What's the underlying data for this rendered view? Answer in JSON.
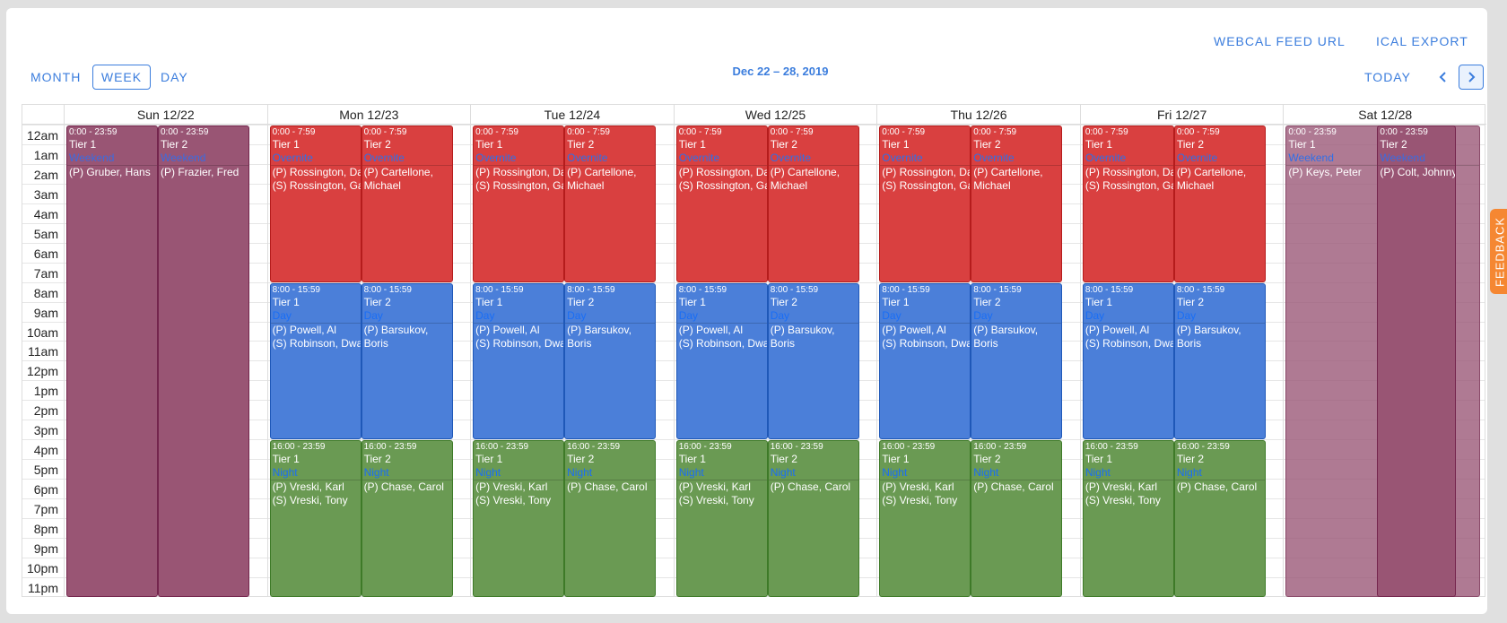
{
  "toolbar": {
    "webcal_label": "WEBCAL FEED URL",
    "ical_label": "ICAL EXPORT",
    "views": [
      "MONTH",
      "WEEK",
      "DAY"
    ],
    "active_view": "WEEK",
    "range_title": "Dec 22 – 28, 2019",
    "today_label": "TODAY",
    "prev_icon": "chevron-left-icon",
    "next_icon": "chevron-right-icon"
  },
  "days": [
    "Sun 12/22",
    "Mon 12/23",
    "Tue 12/24",
    "Wed 12/25",
    "Thu 12/26",
    "Fri 12/27",
    "Sat 12/28"
  ],
  "hours": [
    "12am",
    "1am",
    "2am",
    "3am",
    "4am",
    "5am",
    "6am",
    "7am",
    "8am",
    "9am",
    "10am",
    "11am",
    "12pm",
    "1pm",
    "2pm",
    "3pm",
    "4pm",
    "5pm",
    "6pm",
    "7pm",
    "8pm",
    "9pm",
    "10pm",
    "11pm"
  ],
  "colors": {
    "overnite": "#d94040",
    "day": "#4b7fd9",
    "night": "#6a9a53",
    "weekend": "#995574",
    "accent": "#3b7ddd",
    "feedback": "#f58732"
  },
  "shifts": {
    "weekend": [
      {
        "time": "0:00 - 23:59",
        "tier": "Tier 1",
        "name": "Weekend"
      },
      {
        "time": "0:00 - 23:59",
        "tier": "Tier 2",
        "name": "Weekend"
      }
    ],
    "overnite": [
      {
        "time": "0:00 - 7:59",
        "tier": "Tier 1",
        "name": "Overnite",
        "people": "(P) Rossington, Da\n(S) Rossington, Ga"
      },
      {
        "time": "0:00 - 7:59",
        "tier": "Tier 2",
        "name": "Overnite",
        "people": "(P) Cartellone,\nMichael"
      }
    ],
    "day": [
      {
        "time": "8:00 - 15:59",
        "tier": "Tier 1",
        "name": "Day",
        "people": "(P) Powell, Al\n(S) Robinson, Dwa"
      },
      {
        "time": "8:00 - 15:59",
        "tier": "Tier 2",
        "name": "Day",
        "people": "(P) Barsukov,\nBoris"
      }
    ],
    "night": [
      {
        "time": "16:00 - 23:59",
        "tier": "Tier 1",
        "name": "Night",
        "people": "(P) Vreski, Karl\n(S) Vreski, Tony"
      },
      {
        "time": "16:00 - 23:59",
        "tier": "Tier 2",
        "name": "Night",
        "people": "(P) Chase, Carol"
      }
    ]
  },
  "sunday_people": [
    "(P) Gruber, Hans",
    "(P) Frazier, Fred"
  ],
  "saturday_people": [
    "(P) Keys, Peter",
    "(P) Colt, Johnny"
  ],
  "feedback_label": "FEEDBACK"
}
